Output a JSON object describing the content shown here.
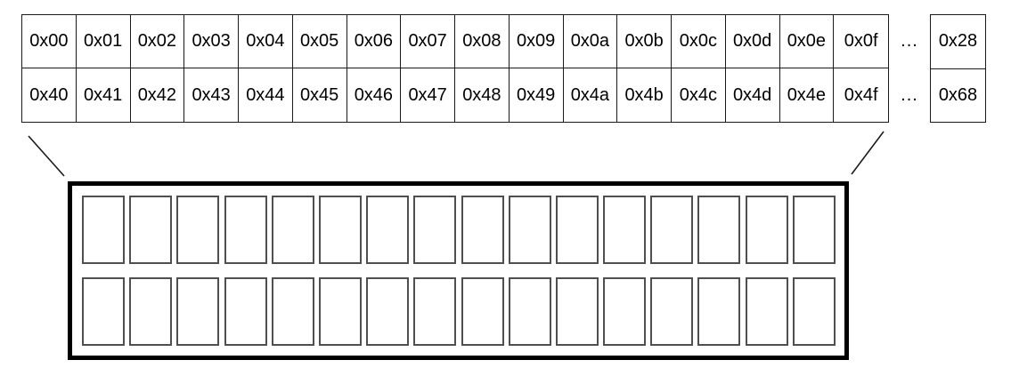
{
  "colors": {
    "background": "#ffffff",
    "text": "#000000",
    "line": "#1a1a1a",
    "box_border": "#000000",
    "cell_border": "#4f4f4f"
  },
  "address_table": {
    "rows": [
      {
        "cells": [
          "0x00",
          "0x01",
          "0x02",
          "0x03",
          "0x04",
          "0x05",
          "0x06",
          "0x07",
          "0x08",
          "0x09",
          "0x0a",
          "0x0b",
          "0x0c",
          "0x0d",
          "0x0e",
          "0x0f"
        ],
        "ellipsis": "...",
        "last": "0x28"
      },
      {
        "cells": [
          "0x40",
          "0x41",
          "0x42",
          "0x43",
          "0x44",
          "0x45",
          "0x46",
          "0x47",
          "0x48",
          "0x49",
          "0x4a",
          "0x4b",
          "0x4c",
          "0x4d",
          "0x4e",
          "0x4f"
        ],
        "ellipsis": "...",
        "last": "0x68"
      }
    ]
  },
  "memory_box": {
    "rows": 2,
    "cells_per_row": 16
  }
}
